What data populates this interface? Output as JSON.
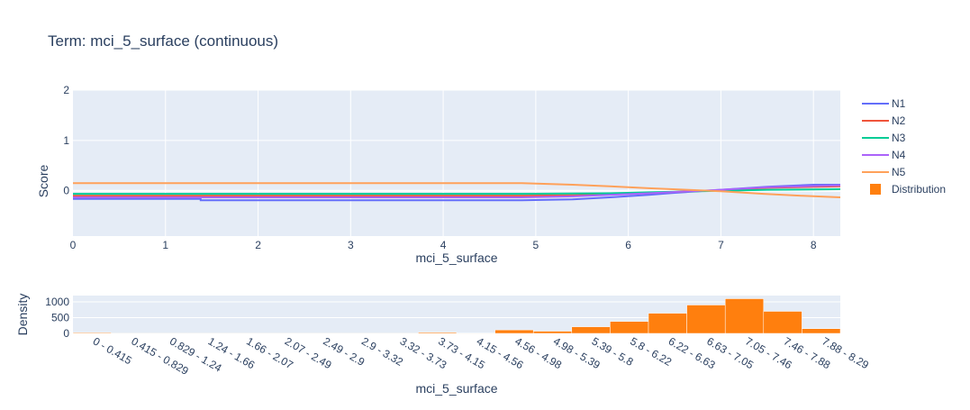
{
  "title": "Term: mci_5_surface (continuous)",
  "colors": {
    "plot_bg": "#e5ecf6",
    "grid": "#ffffff",
    "text": "#2a3f5f",
    "N1": "#636efa",
    "N2": "#ef553b",
    "N3": "#00cc96",
    "N4": "#ab63fa",
    "N5": "#ffa15a",
    "Distribution": "#ff7f0e"
  },
  "chart_data": [
    {
      "type": "line",
      "xlabel": "mci_5_surface",
      "ylabel": "Score",
      "xlim": [
        0,
        8.29
      ],
      "ylim": [
        -0.9,
        2
      ],
      "x_ticks": [
        "0",
        "1",
        "2",
        "3",
        "4",
        "5",
        "6",
        "7",
        "8"
      ],
      "y_ticks": [
        "0",
        "1",
        "2"
      ],
      "legend_position": "right",
      "series": [
        {
          "name": "N1",
          "points": [
            [
              0,
              -0.16
            ],
            [
              1.38,
              -0.16
            ],
            [
              1.38,
              -0.19
            ],
            [
              4.85,
              -0.19
            ],
            [
              5.4,
              -0.17
            ],
            [
              5.8,
              -0.13
            ],
            [
              6.22,
              -0.08
            ],
            [
              6.5,
              -0.04
            ],
            [
              7.0,
              0.02
            ],
            [
              7.5,
              0.08
            ],
            [
              8.0,
              0.12
            ],
            [
              8.29,
              0.12
            ]
          ]
        },
        {
          "name": "N2",
          "points": [
            [
              0,
              -0.1
            ],
            [
              4.85,
              -0.1
            ],
            [
              5.4,
              -0.09
            ],
            [
              5.8,
              -0.07
            ],
            [
              6.22,
              -0.04
            ],
            [
              7.0,
              0.01
            ],
            [
              7.5,
              0.06
            ],
            [
              8.29,
              0.09
            ]
          ]
        },
        {
          "name": "N3",
          "points": [
            [
              0,
              -0.06
            ],
            [
              4.85,
              -0.06
            ],
            [
              5.8,
              -0.05
            ],
            [
              6.22,
              -0.03
            ],
            [
              7.0,
              0.0
            ],
            [
              7.5,
              0.02
            ],
            [
              8.29,
              0.03
            ]
          ]
        },
        {
          "name": "N4",
          "points": [
            [
              0,
              -0.13
            ],
            [
              4.85,
              -0.13
            ],
            [
              5.4,
              -0.11
            ],
            [
              5.8,
              -0.08
            ],
            [
              6.22,
              -0.05
            ],
            [
              7.0,
              0.02
            ],
            [
              7.5,
              0.07
            ],
            [
              8.29,
              0.11
            ]
          ]
        },
        {
          "name": "N5",
          "points": [
            [
              0,
              0.15
            ],
            [
              4.85,
              0.15
            ],
            [
              5.4,
              0.12
            ],
            [
              5.8,
              0.09
            ],
            [
              6.22,
              0.05
            ],
            [
              6.63,
              0.02
            ],
            [
              7.0,
              -0.01
            ],
            [
              7.46,
              -0.06
            ],
            [
              7.88,
              -0.1
            ],
            [
              8.29,
              -0.13
            ]
          ]
        }
      ]
    },
    {
      "type": "bar",
      "name": "Distribution",
      "xlabel": "mci_5_surface",
      "ylabel": "Density",
      "ylim": [
        0,
        1200
      ],
      "y_ticks": [
        "0",
        "500",
        "1000"
      ],
      "categories": [
        "0 - 0.415",
        "0.415 - 0.829",
        "0.829 - 1.24",
        "1.24 - 1.66",
        "1.66 - 2.07",
        "2.07 - 2.49",
        "2.49 - 2.9",
        "2.9 - 3.32",
        "3.32 - 3.73",
        "3.73 - 4.15",
        "4.15 - 4.56",
        "4.56 - 4.98",
        "4.98 - 5.39",
        "5.39 - 5.8",
        "5.8 - 6.22",
        "6.22 - 6.63",
        "6.63 - 7.05",
        "7.05 - 7.46",
        "7.46 - 7.88",
        "7.88 - 8.29"
      ],
      "values": [
        25,
        5,
        5,
        5,
        5,
        5,
        5,
        5,
        5,
        30,
        10,
        110,
        70,
        210,
        380,
        640,
        900,
        1100,
        700,
        150
      ]
    }
  ]
}
